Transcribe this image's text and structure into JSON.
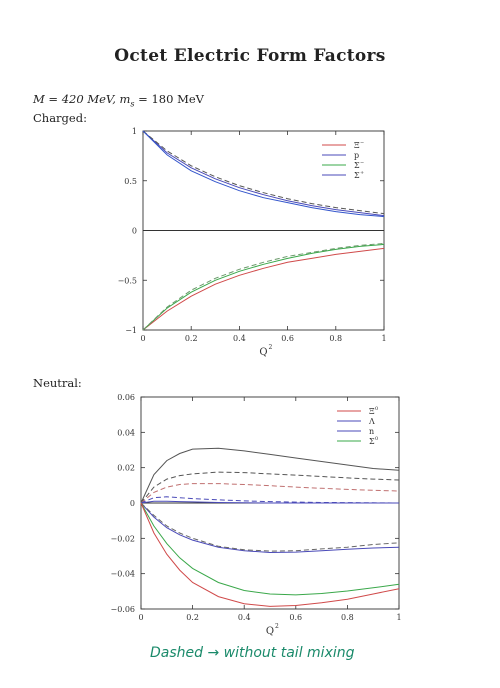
{
  "page": {
    "title": "Octet Electric Form Factors",
    "params_line1": "M = 420 MeV, m",
    "params_sub": "s",
    "params_line1b": " = 180 MeV",
    "charged_label": "Charged:",
    "neutral_label": "Neutral:",
    "handnote": "Dashed → without tail mixing"
  },
  "chart_data": [
    {
      "type": "line",
      "name": "charged",
      "xlabel": "Q",
      "xlabel_sup": "2",
      "xlim": [
        0,
        1
      ],
      "ylim": [
        -1,
        1
      ],
      "xticks": [
        0,
        0.2,
        0.4,
        0.6,
        0.8,
        1
      ],
      "xtick_labels": [
        "0",
        "0.2",
        "0.4",
        "0.6",
        "0.8",
        "1"
      ],
      "yticks": [
        -1,
        -0.5,
        0,
        0.5,
        1
      ],
      "ytick_labels": [
        "−1",
        "−0.5",
        "0",
        "0.5",
        "1"
      ],
      "legend_position": "top-right",
      "legend": [
        {
          "label": "Ξ",
          "sup": "−",
          "color": "#d04a4a"
        },
        {
          "label": "p",
          "sup": "",
          "color": "#4a4ab8"
        },
        {
          "label": "Σ",
          "sup": "−",
          "color": "#3aa84a"
        },
        {
          "label": "Σ",
          "sup": "+",
          "color": "#4a4ab8"
        }
      ],
      "zero_line": true,
      "series": [
        {
          "color": "#4a4ab8",
          "dashed": false,
          "x": [
            0,
            0.1,
            0.2,
            0.3,
            0.4,
            0.5,
            0.6,
            0.7,
            0.8,
            0.9,
            1
          ],
          "y": [
            1,
            0.78,
            0.63,
            0.52,
            0.43,
            0.36,
            0.3,
            0.25,
            0.21,
            0.18,
            0.15
          ]
        },
        {
          "color": "#555555",
          "dashed": true,
          "x": [
            0,
            0.1,
            0.2,
            0.3,
            0.4,
            0.5,
            0.6,
            0.7,
            0.8,
            0.9,
            1
          ],
          "y": [
            1,
            0.8,
            0.65,
            0.54,
            0.45,
            0.38,
            0.32,
            0.27,
            0.23,
            0.2,
            0.17
          ]
        },
        {
          "color": "#3355cc",
          "dashed": false,
          "x": [
            0,
            0.1,
            0.2,
            0.3,
            0.4,
            0.5,
            0.6,
            0.7,
            0.8,
            0.9,
            1
          ],
          "y": [
            1,
            0.76,
            0.6,
            0.49,
            0.4,
            0.33,
            0.28,
            0.23,
            0.19,
            0.16,
            0.14
          ]
        },
        {
          "color": "#d04a4a",
          "dashed": false,
          "x": [
            0,
            0.1,
            0.2,
            0.3,
            0.4,
            0.5,
            0.6,
            0.7,
            0.8,
            0.9,
            1
          ],
          "y": [
            -1,
            -0.81,
            -0.66,
            -0.54,
            -0.45,
            -0.38,
            -0.32,
            -0.28,
            -0.24,
            -0.21,
            -0.18
          ]
        },
        {
          "color": "#3aa84a",
          "dashed": false,
          "x": [
            0,
            0.1,
            0.2,
            0.3,
            0.4,
            0.5,
            0.6,
            0.7,
            0.8,
            0.9,
            1
          ],
          "y": [
            -1,
            -0.78,
            -0.62,
            -0.5,
            -0.41,
            -0.34,
            -0.28,
            -0.23,
            -0.19,
            -0.16,
            -0.14
          ]
        },
        {
          "color": "#6a9a6a",
          "dashed": true,
          "x": [
            0,
            0.1,
            0.2,
            0.3,
            0.4,
            0.5,
            0.6,
            0.7,
            0.8,
            0.9,
            1
          ],
          "y": [
            -1,
            -0.77,
            -0.6,
            -0.48,
            -0.39,
            -0.32,
            -0.26,
            -0.22,
            -0.18,
            -0.15,
            -0.13
          ]
        }
      ]
    },
    {
      "type": "line",
      "name": "neutral",
      "xlabel": "Q",
      "xlabel_sup": "2",
      "xlim": [
        0,
        1
      ],
      "ylim": [
        -0.06,
        0.06
      ],
      "xticks": [
        0,
        0.2,
        0.4,
        0.6,
        0.8,
        1
      ],
      "xtick_labels": [
        "0",
        "0.2",
        "0.4",
        "0.6",
        "0.8",
        "1"
      ],
      "yticks": [
        -0.06,
        -0.04,
        -0.02,
        0,
        0.02,
        0.04,
        0.06
      ],
      "ytick_labels": [
        "−0.06",
        "−0.04",
        "−0.02",
        "0",
        "0.02",
        "0.04",
        "0.06"
      ],
      "legend_position": "top-right",
      "legend": [
        {
          "label": "Ξ",
          "sup": "0",
          "color": "#d04a4a"
        },
        {
          "label": "Λ",
          "sup": "",
          "color": "#4a4ab8"
        },
        {
          "label": "n",
          "sup": "",
          "color": "#4a4ab8"
        },
        {
          "label": "Σ",
          "sup": "0",
          "color": "#3aa84a"
        }
      ],
      "zero_line": true,
      "series": [
        {
          "color": "#555555",
          "dashed": false,
          "x": [
            0,
            0.05,
            0.1,
            0.15,
            0.2,
            0.3,
            0.4,
            0.5,
            0.6,
            0.7,
            0.8,
            0.9,
            1
          ],
          "y": [
            0,
            0.016,
            0.024,
            0.028,
            0.0305,
            0.031,
            0.0295,
            0.0275,
            0.0255,
            0.0235,
            0.0215,
            0.0195,
            0.0185
          ]
        },
        {
          "color": "#555555",
          "dashed": true,
          "x": [
            0,
            0.05,
            0.1,
            0.15,
            0.2,
            0.3,
            0.4,
            0.5,
            0.6,
            0.7,
            0.8,
            0.9,
            1
          ],
          "y": [
            0,
            0.009,
            0.0135,
            0.0155,
            0.0165,
            0.0175,
            0.0172,
            0.0165,
            0.0158,
            0.015,
            0.0142,
            0.0135,
            0.013
          ]
        },
        {
          "color": "#c07070",
          "dashed": true,
          "x": [
            0,
            0.05,
            0.1,
            0.15,
            0.2,
            0.3,
            0.4,
            0.5,
            0.6,
            0.7,
            0.8,
            0.9,
            1
          ],
          "y": [
            0,
            0.006,
            0.009,
            0.0105,
            0.011,
            0.011,
            0.0105,
            0.0098,
            0.009,
            0.0083,
            0.0077,
            0.0072,
            0.0068
          ]
        },
        {
          "color": "#4a4ab8",
          "dashed": true,
          "x": [
            0,
            0.05,
            0.1,
            0.15,
            0.2,
            0.3,
            0.4,
            0.5,
            0.6,
            0.7,
            0.8,
            0.9,
            1
          ],
          "y": [
            0,
            0.003,
            0.0035,
            0.003,
            0.0025,
            0.0018,
            0.0012,
            0.0008,
            0.0005,
            0.0003,
            0.0002,
            0.0001,
            0
          ]
        },
        {
          "color": "#4a4ab8",
          "dashed": false,
          "x": [
            0,
            0.05,
            0.1,
            0.15,
            0.2,
            0.3,
            0.4,
            0.5,
            0.6,
            0.7,
            0.8,
            0.9,
            1
          ],
          "y": [
            0,
            0.001,
            0.001,
            0.0008,
            0.0006,
            0.0003,
            0.0001,
            0,
            0,
            0,
            0,
            0,
            0
          ]
        },
        {
          "color": "#4a4ab8",
          "dashed": false,
          "x": [
            0,
            0.05,
            0.1,
            0.15,
            0.2,
            0.3,
            0.4,
            0.5,
            0.6,
            0.7,
            0.8,
            0.9,
            1
          ],
          "y": [
            0,
            -0.008,
            -0.014,
            -0.018,
            -0.021,
            -0.025,
            -0.027,
            -0.028,
            -0.0278,
            -0.027,
            -0.0262,
            -0.0255,
            -0.025
          ]
        },
        {
          "color": "#666666",
          "dashed": true,
          "x": [
            0,
            0.05,
            0.1,
            0.15,
            0.2,
            0.3,
            0.4,
            0.5,
            0.6,
            0.7,
            0.8,
            0.9,
            1
          ],
          "y": [
            0,
            -0.007,
            -0.013,
            -0.017,
            -0.02,
            -0.0245,
            -0.0265,
            -0.0272,
            -0.027,
            -0.026,
            -0.025,
            -0.0235,
            -0.0225
          ]
        },
        {
          "color": "#3aa84a",
          "dashed": false,
          "x": [
            0,
            0.05,
            0.1,
            0.15,
            0.2,
            0.3,
            0.4,
            0.5,
            0.6,
            0.7,
            0.8,
            0.9,
            1
          ],
          "y": [
            0,
            -0.013,
            -0.023,
            -0.031,
            -0.037,
            -0.045,
            -0.0495,
            -0.0515,
            -0.052,
            -0.0512,
            -0.0498,
            -0.048,
            -0.046
          ]
        },
        {
          "color": "#d04a4a",
          "dashed": false,
          "x": [
            0,
            0.05,
            0.1,
            0.15,
            0.2,
            0.3,
            0.4,
            0.5,
            0.6,
            0.7,
            0.8,
            0.9,
            1
          ],
          "y": [
            0,
            -0.017,
            -0.029,
            -0.038,
            -0.045,
            -0.053,
            -0.057,
            -0.0585,
            -0.058,
            -0.0565,
            -0.0545,
            -0.0515,
            -0.0485
          ]
        }
      ]
    }
  ]
}
